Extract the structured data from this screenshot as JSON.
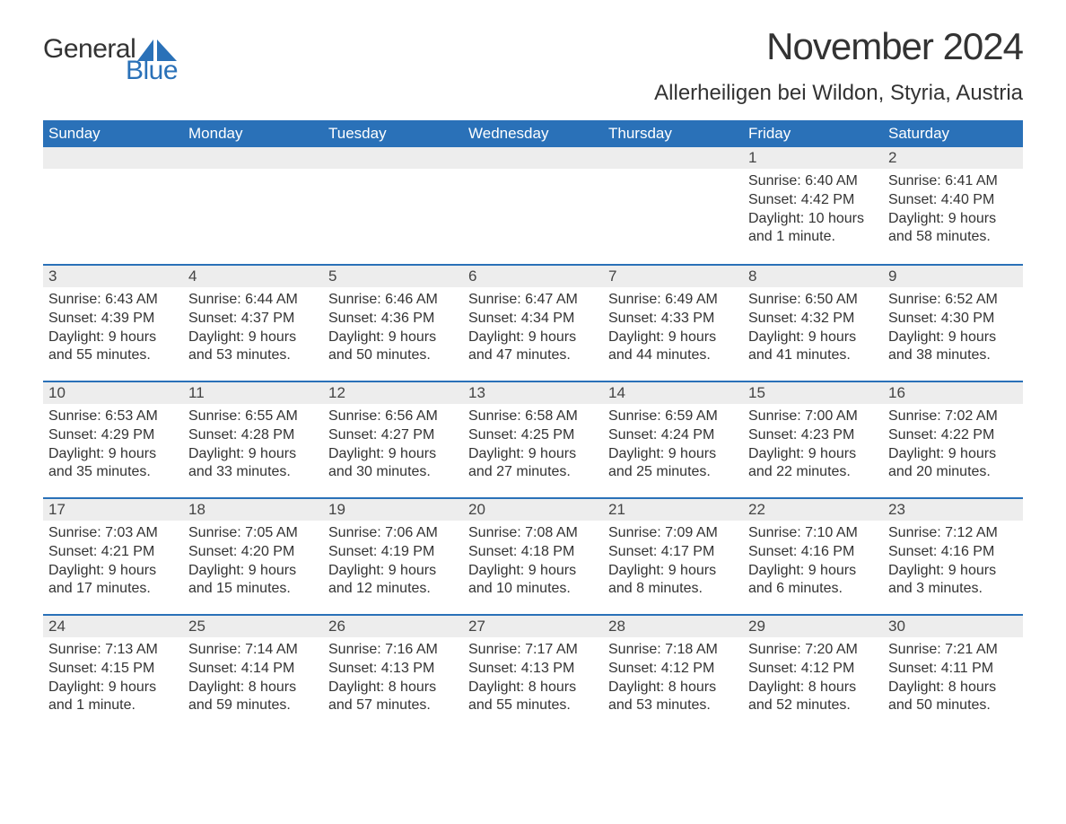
{
  "logo": {
    "word1": "General",
    "word2": "Blue"
  },
  "header": {
    "title": "November 2024",
    "subtitle": "Allerheiligen bei Wildon, Styria, Austria"
  },
  "colors": {
    "brand_blue": "#2a71b8",
    "header_bg": "#2a71b8",
    "header_text": "#ffffff",
    "daynum_bg": "#ededed",
    "rule": "#2a71b8",
    "body_text": "#333333",
    "page_bg": "#ffffff"
  },
  "typography": {
    "title_fontsize": 42,
    "subtitle_fontsize": 24,
    "dow_fontsize": 17,
    "daynum_fontsize": 17,
    "body_fontsize": 16,
    "font_family": "Arial"
  },
  "calendar": {
    "days_of_week": [
      "Sunday",
      "Monday",
      "Tuesday",
      "Wednesday",
      "Thursday",
      "Friday",
      "Saturday"
    ],
    "weeks": [
      [
        null,
        null,
        null,
        null,
        null,
        {
          "n": "1",
          "sunrise": "Sunrise: 6:40 AM",
          "sunset": "Sunset: 4:42 PM",
          "daylight": "Daylight: 10 hours and 1 minute."
        },
        {
          "n": "2",
          "sunrise": "Sunrise: 6:41 AM",
          "sunset": "Sunset: 4:40 PM",
          "daylight": "Daylight: 9 hours and 58 minutes."
        }
      ],
      [
        {
          "n": "3",
          "sunrise": "Sunrise: 6:43 AM",
          "sunset": "Sunset: 4:39 PM",
          "daylight": "Daylight: 9 hours and 55 minutes."
        },
        {
          "n": "4",
          "sunrise": "Sunrise: 6:44 AM",
          "sunset": "Sunset: 4:37 PM",
          "daylight": "Daylight: 9 hours and 53 minutes."
        },
        {
          "n": "5",
          "sunrise": "Sunrise: 6:46 AM",
          "sunset": "Sunset: 4:36 PM",
          "daylight": "Daylight: 9 hours and 50 minutes."
        },
        {
          "n": "6",
          "sunrise": "Sunrise: 6:47 AM",
          "sunset": "Sunset: 4:34 PM",
          "daylight": "Daylight: 9 hours and 47 minutes."
        },
        {
          "n": "7",
          "sunrise": "Sunrise: 6:49 AM",
          "sunset": "Sunset: 4:33 PM",
          "daylight": "Daylight: 9 hours and 44 minutes."
        },
        {
          "n": "8",
          "sunrise": "Sunrise: 6:50 AM",
          "sunset": "Sunset: 4:32 PM",
          "daylight": "Daylight: 9 hours and 41 minutes."
        },
        {
          "n": "9",
          "sunrise": "Sunrise: 6:52 AM",
          "sunset": "Sunset: 4:30 PM",
          "daylight": "Daylight: 9 hours and 38 minutes."
        }
      ],
      [
        {
          "n": "10",
          "sunrise": "Sunrise: 6:53 AM",
          "sunset": "Sunset: 4:29 PM",
          "daylight": "Daylight: 9 hours and 35 minutes."
        },
        {
          "n": "11",
          "sunrise": "Sunrise: 6:55 AM",
          "sunset": "Sunset: 4:28 PM",
          "daylight": "Daylight: 9 hours and 33 minutes."
        },
        {
          "n": "12",
          "sunrise": "Sunrise: 6:56 AM",
          "sunset": "Sunset: 4:27 PM",
          "daylight": "Daylight: 9 hours and 30 minutes."
        },
        {
          "n": "13",
          "sunrise": "Sunrise: 6:58 AM",
          "sunset": "Sunset: 4:25 PM",
          "daylight": "Daylight: 9 hours and 27 minutes."
        },
        {
          "n": "14",
          "sunrise": "Sunrise: 6:59 AM",
          "sunset": "Sunset: 4:24 PM",
          "daylight": "Daylight: 9 hours and 25 minutes."
        },
        {
          "n": "15",
          "sunrise": "Sunrise: 7:00 AM",
          "sunset": "Sunset: 4:23 PM",
          "daylight": "Daylight: 9 hours and 22 minutes."
        },
        {
          "n": "16",
          "sunrise": "Sunrise: 7:02 AM",
          "sunset": "Sunset: 4:22 PM",
          "daylight": "Daylight: 9 hours and 20 minutes."
        }
      ],
      [
        {
          "n": "17",
          "sunrise": "Sunrise: 7:03 AM",
          "sunset": "Sunset: 4:21 PM",
          "daylight": "Daylight: 9 hours and 17 minutes."
        },
        {
          "n": "18",
          "sunrise": "Sunrise: 7:05 AM",
          "sunset": "Sunset: 4:20 PM",
          "daylight": "Daylight: 9 hours and 15 minutes."
        },
        {
          "n": "19",
          "sunrise": "Sunrise: 7:06 AM",
          "sunset": "Sunset: 4:19 PM",
          "daylight": "Daylight: 9 hours and 12 minutes."
        },
        {
          "n": "20",
          "sunrise": "Sunrise: 7:08 AM",
          "sunset": "Sunset: 4:18 PM",
          "daylight": "Daylight: 9 hours and 10 minutes."
        },
        {
          "n": "21",
          "sunrise": "Sunrise: 7:09 AM",
          "sunset": "Sunset: 4:17 PM",
          "daylight": "Daylight: 9 hours and 8 minutes."
        },
        {
          "n": "22",
          "sunrise": "Sunrise: 7:10 AM",
          "sunset": "Sunset: 4:16 PM",
          "daylight": "Daylight: 9 hours and 6 minutes."
        },
        {
          "n": "23",
          "sunrise": "Sunrise: 7:12 AM",
          "sunset": "Sunset: 4:16 PM",
          "daylight": "Daylight: 9 hours and 3 minutes."
        }
      ],
      [
        {
          "n": "24",
          "sunrise": "Sunrise: 7:13 AM",
          "sunset": "Sunset: 4:15 PM",
          "daylight": "Daylight: 9 hours and 1 minute."
        },
        {
          "n": "25",
          "sunrise": "Sunrise: 7:14 AM",
          "sunset": "Sunset: 4:14 PM",
          "daylight": "Daylight: 8 hours and 59 minutes."
        },
        {
          "n": "26",
          "sunrise": "Sunrise: 7:16 AM",
          "sunset": "Sunset: 4:13 PM",
          "daylight": "Daylight: 8 hours and 57 minutes."
        },
        {
          "n": "27",
          "sunrise": "Sunrise: 7:17 AM",
          "sunset": "Sunset: 4:13 PM",
          "daylight": "Daylight: 8 hours and 55 minutes."
        },
        {
          "n": "28",
          "sunrise": "Sunrise: 7:18 AM",
          "sunset": "Sunset: 4:12 PM",
          "daylight": "Daylight: 8 hours and 53 minutes."
        },
        {
          "n": "29",
          "sunrise": "Sunrise: 7:20 AM",
          "sunset": "Sunset: 4:12 PM",
          "daylight": "Daylight: 8 hours and 52 minutes."
        },
        {
          "n": "30",
          "sunrise": "Sunrise: 7:21 AM",
          "sunset": "Sunset: 4:11 PM",
          "daylight": "Daylight: 8 hours and 50 minutes."
        }
      ]
    ]
  }
}
